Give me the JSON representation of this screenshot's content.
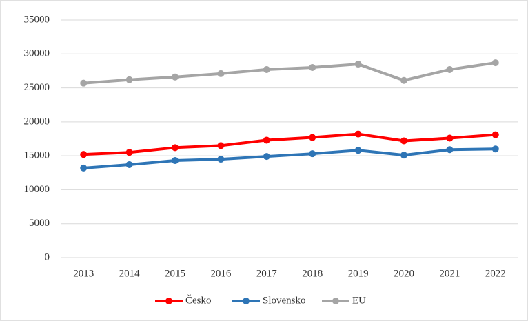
{
  "chart_data": {
    "type": "line",
    "categories": [
      "2013",
      "2014",
      "2015",
      "2016",
      "2017",
      "2018",
      "2019",
      "2020",
      "2021",
      "2022"
    ],
    "series": [
      {
        "name": "Česko",
        "color": "#ff0000",
        "values": [
          15200,
          15500,
          16200,
          16500,
          17300,
          17700,
          18200,
          17200,
          17600,
          18100
        ]
      },
      {
        "name": "Slovensko",
        "color": "#2e75b6",
        "values": [
          13200,
          13700,
          14300,
          14500,
          14900,
          15300,
          15800,
          15100,
          15900,
          16000
        ]
      },
      {
        "name": "EU",
        "color": "#a5a5a5",
        "values": [
          25700,
          26200,
          26600,
          27100,
          27700,
          28000,
          28500,
          26100,
          27700,
          28700
        ]
      }
    ],
    "ylim": [
      0,
      35000
    ],
    "yticks": [
      0,
      5000,
      10000,
      15000,
      20000,
      25000,
      30000,
      35000
    ],
    "grid": true,
    "legend": "bottom"
  }
}
